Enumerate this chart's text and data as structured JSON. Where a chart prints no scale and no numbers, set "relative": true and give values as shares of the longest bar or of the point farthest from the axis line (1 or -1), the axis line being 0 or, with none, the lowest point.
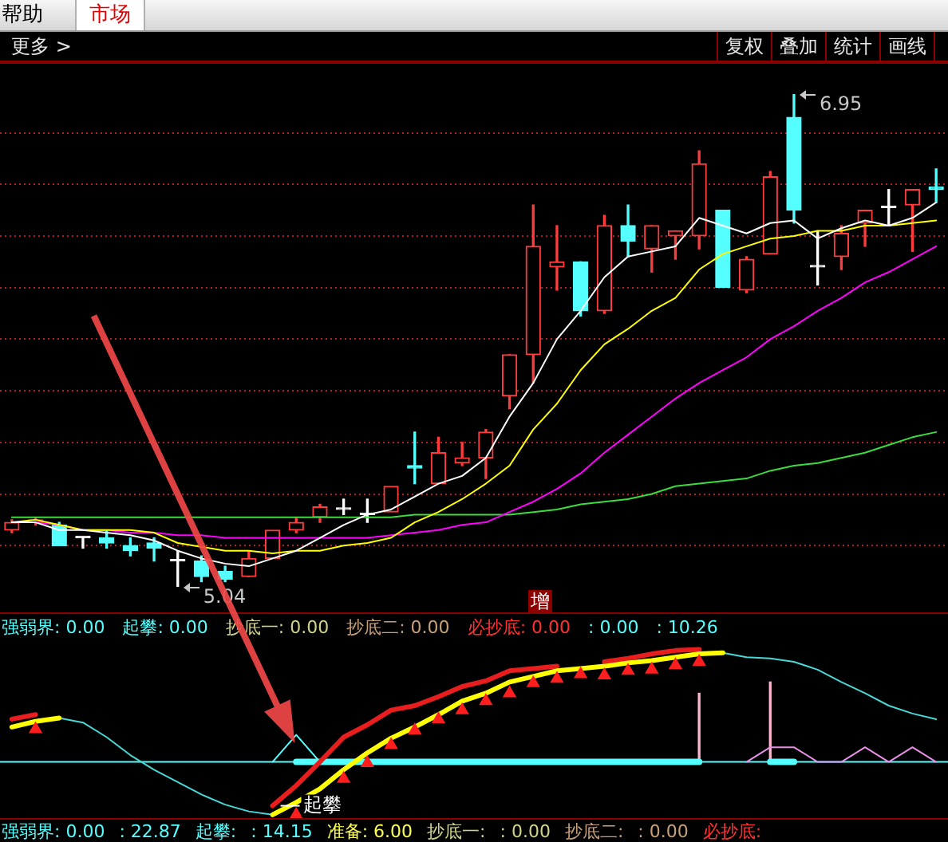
{
  "chart_data": [
    {
      "type": "other",
      "annotations": [
        "帮助",
        "市场",
        "更多 >",
        "复权",
        "叠加",
        "统计",
        "画线"
      ]
    },
    {
      "type": "candlestick",
      "categories": [
        null,
        null,
        null,
        null,
        null,
        null,
        null,
        null,
        null,
        null,
        null,
        null,
        null,
        null,
        null,
        null,
        null,
        null,
        null,
        null,
        null,
        null,
        null,
        null,
        null,
        null,
        null,
        null,
        null,
        null,
        null,
        null,
        null,
        null,
        null,
        null,
        null,
        null,
        null,
        null
      ],
      "ohlc": [
        [
          5.26,
          5.3,
          5.25,
          5.29
        ],
        [
          5.29,
          5.31,
          5.28,
          5.3
        ],
        [
          5.28,
          5.29,
          5.2,
          5.2
        ],
        [
          5.23,
          5.23,
          5.19,
          5.23
        ],
        [
          5.23,
          5.26,
          5.19,
          5.21
        ],
        [
          5.2,
          5.23,
          5.16,
          5.18
        ],
        [
          5.21,
          5.23,
          5.14,
          5.19
        ],
        [
          5.14,
          5.18,
          5.04,
          5.14
        ],
        [
          5.14,
          5.16,
          5.06,
          5.08
        ],
        [
          5.1,
          5.12,
          5.06,
          5.07
        ],
        [
          5.08,
          5.18,
          5.08,
          5.15
        ],
        [
          5.15,
          5.26,
          5.15,
          5.26
        ],
        [
          5.26,
          5.31,
          5.25,
          5.29
        ],
        [
          5.31,
          5.36,
          5.29,
          5.35
        ],
        [
          5.34,
          5.38,
          5.32,
          5.34
        ],
        [
          5.32,
          5.38,
          5.29,
          5.32
        ],
        [
          5.33,
          5.43,
          5.33,
          5.43
        ],
        [
          5.51,
          5.64,
          5.44,
          5.5
        ],
        [
          5.44,
          5.62,
          5.44,
          5.56
        ],
        [
          5.52,
          5.6,
          5.51,
          5.54
        ],
        [
          5.54,
          5.65,
          5.46,
          5.64
        ],
        [
          5.78,
          5.94,
          5.73,
          5.94
        ],
        [
          5.94,
          6.52,
          5.83,
          6.36
        ],
        [
          6.28,
          6.44,
          6.19,
          6.3
        ],
        [
          6.3,
          6.3,
          6.09,
          6.11
        ],
        [
          6.11,
          6.48,
          6.1,
          6.44
        ],
        [
          6.44,
          6.52,
          6.32,
          6.38
        ],
        [
          6.35,
          6.44,
          6.26,
          6.44
        ],
        [
          6.4,
          6.42,
          6.31,
          6.42
        ],
        [
          6.4,
          6.73,
          6.35,
          6.68
        ],
        [
          6.5,
          6.5,
          6.2,
          6.2
        ],
        [
          6.19,
          6.32,
          6.18,
          6.31
        ],
        [
          6.33,
          6.65,
          6.33,
          6.63
        ],
        [
          6.86,
          6.95,
          6.45,
          6.5
        ],
        [
          6.28,
          6.42,
          6.21,
          6.28
        ],
        [
          6.32,
          6.44,
          6.27,
          6.41
        ],
        [
          6.45,
          6.5,
          6.36,
          6.5
        ],
        [
          6.51,
          6.58,
          6.44,
          6.51
        ],
        [
          6.52,
          6.58,
          6.34,
          6.58
        ],
        [
          6.59,
          6.66,
          6.53,
          6.58
        ]
      ],
      "colors": [
        "#ff3c3c",
        "#ff3c3c",
        "#55ffff",
        "#ffffff",
        "#55ffff",
        "#55ffff",
        "#55ffff",
        "#ffffff",
        "#55ffff",
        "#55ffff",
        "#ff3c3c",
        "#ff3c3c",
        "#ff3c3c",
        "#ff3c3c",
        "#ffffff",
        "#ffffff",
        "#ff3c3c",
        "#55ffff",
        "#ff3c3c",
        "#ff3c3c",
        "#ff3c3c",
        "#ff3c3c",
        "#ff3c3c",
        "#ff3c3c",
        "#55ffff",
        "#ff3c3c",
        "#55ffff",
        "#ff3c3c",
        "#ff3c3c",
        "#ff3c3c",
        "#55ffff",
        "#ff3c3c",
        "#ff3c3c",
        "#55ffff",
        "#ffffff",
        "#ff3c3c",
        "#ff3c3c",
        "#ffffff",
        "#ff3c3c",
        "#55ffff"
      ],
      "series": [
        {
          "type": "line",
          "color": "#ffffff",
          "values": [
            5.29,
            5.29,
            5.26,
            5.26,
            5.25,
            5.24,
            5.22,
            5.18,
            5.15,
            5.13,
            5.12,
            5.15,
            5.18,
            5.23,
            5.28,
            5.32,
            5.34,
            5.39,
            5.44,
            5.47,
            5.54,
            5.7,
            5.83,
            6.0,
            6.11,
            6.24,
            6.32,
            6.34,
            6.36,
            6.47,
            6.44,
            6.41,
            6.45,
            6.46,
            6.39,
            6.43,
            6.46,
            6.44,
            6.47,
            6.53
          ]
        },
        {
          "type": "line",
          "color": "#ffff00",
          "values": [
            5.29,
            5.3,
            5.28,
            5.26,
            5.26,
            5.26,
            5.25,
            5.21,
            null,
            5.18,
            5.18,
            5.17,
            5.18,
            5.18,
            5.2,
            5.21,
            5.23,
            5.29,
            5.33,
            5.38,
            5.44,
            5.51,
            5.65,
            5.75,
            5.88,
            5.98,
            6.04,
            6.11,
            6.16,
            6.27,
            6.33,
            6.36,
            6.39,
            6.4,
            6.42,
            6.42,
            6.44,
            6.44,
            6.45,
            6.46
          ]
        },
        {
          "type": "line",
          "color": "#ff00ff",
          "values": [
            5.29,
            5.29,
            5.28,
            5.26,
            5.26,
            5.25,
            5.25,
            5.24,
            5.24,
            5.23,
            5.23,
            5.23,
            5.23,
            5.23,
            5.23,
            5.23,
            5.24,
            5.25,
            5.26,
            5.28,
            5.29,
            5.33,
            5.37,
            5.42,
            5.48,
            5.56,
            5.63,
            5.7,
            5.77,
            5.83,
            5.88,
            5.93,
            6.0,
            6.05,
            6.11,
            6.16,
            6.22,
            6.26,
            6.31,
            6.36
          ]
        },
        {
          "type": "line",
          "color": "#3cdc3c",
          "values": [
            5.31,
            5.31,
            5.31,
            5.31,
            5.31,
            5.31,
            5.31,
            5.31,
            5.31,
            5.31,
            5.31,
            5.31,
            5.31,
            5.31,
            5.31,
            5.31,
            5.31,
            5.32,
            5.32,
            5.32,
            5.32,
            5.32,
            5.33,
            5.34,
            5.36,
            5.37,
            5.38,
            5.4,
            5.43,
            5.44,
            5.45,
            5.46,
            5.49,
            5.51,
            5.52,
            5.54,
            5.56,
            5.59,
            5.62,
            5.64
          ]
        }
      ],
      "yticks": [
        {
          "value": 5.2,
          "label": null
        },
        {
          "value": 5.4,
          "label": null
        },
        {
          "value": 5.6,
          "label": null
        },
        {
          "value": 5.8,
          "label": null
        },
        {
          "value": 6.0,
          "label": null
        },
        {
          "value": 6.2,
          "label": null
        },
        {
          "value": 6.4,
          "label": null
        },
        {
          "value": 6.6,
          "label": null
        },
        {
          "value": 6.8,
          "label": null
        }
      ],
      "grid": "y",
      "tick_labels": false,
      "annotations": [
        "6.95",
        "5.04",
        "增"
      ]
    },
    {
      "type": "line",
      "relative": true,
      "tick_labels": false,
      "categories": [
        null,
        null,
        null,
        null,
        null,
        null,
        null,
        null,
        null,
        null,
        null,
        null,
        null,
        null,
        null,
        null,
        null,
        null,
        null,
        null,
        null,
        null,
        null,
        null,
        null,
        null,
        null,
        null,
        null,
        null,
        null,
        null,
        null,
        null,
        null,
        null,
        null,
        null,
        null,
        null
      ],
      "series": [
        {
          "type": "line",
          "color": "#ffff00",
          "values": [
            0.31,
            0.36,
            0.39,
            null,
            null,
            null,
            null,
            null,
            null,
            null,
            null,
            -0.47,
            -0.36,
            -0.24,
            -0.07,
            0.08,
            0.21,
            0.31,
            0.42,
            0.54,
            0.61,
            0.71,
            0.76,
            0.81,
            0.83,
            0.85,
            0.88,
            0.9,
            0.93,
            0.96,
            0.97,
            null,
            null,
            null,
            null,
            null,
            null,
            null,
            null,
            null
          ]
        },
        {
          "type": "line",
          "color": "#48d8d8",
          "values": [
            null,
            null,
            0.39,
            0.35,
            0.22,
            0.06,
            -0.07,
            -0.18,
            -0.29,
            -0.38,
            -0.44,
            -0.47,
            null,
            null,
            null,
            null,
            null,
            null,
            null,
            null,
            null,
            null,
            null,
            null,
            null,
            null,
            null,
            null,
            null,
            null,
            0.97,
            0.93,
            0.92,
            0.89,
            0.82,
            0.71,
            0.61,
            0.5,
            0.43,
            0.38
          ]
        },
        {
          "type": "line",
          "color": "#e81e1e",
          "values": [
            0.38,
            0.42,
            null,
            null,
            null,
            null,
            null,
            null,
            null,
            null,
            null,
            -0.39,
            -0.21,
            0.0,
            0.22,
            0.33,
            0.46,
            0.5,
            0.58,
            0.67,
            0.72,
            0.81,
            0.83,
            0.85,
            null,
            0.89,
            0.92,
            0.96,
            0.99,
            1.0,
            null,
            null,
            null,
            null,
            null,
            null,
            null,
            null,
            null,
            null
          ]
        },
        {
          "type": "line",
          "color": "#55ffff",
          "values": [
            null,
            null,
            null,
            null,
            null,
            null,
            null,
            null,
            null,
            null,
            null,
            null,
            0,
            0,
            0,
            0,
            0,
            0,
            0,
            0,
            0,
            0,
            0,
            0,
            0,
            0,
            0,
            0,
            0,
            0,
            null,
            null,
            0,
            0,
            null,
            null,
            null,
            null,
            null,
            null
          ]
        },
        {
          "type": "line",
          "color": "#55ffff",
          "values": [
            null,
            null,
            null,
            null,
            null,
            null,
            null,
            null,
            null,
            null,
            null,
            0,
            0.24,
            0,
            null,
            null,
            null,
            null,
            null,
            null,
            null,
            null,
            null,
            null,
            null,
            null,
            null,
            null,
            null,
            null,
            null,
            null,
            null,
            null,
            null,
            null,
            null,
            null,
            null,
            null
          ]
        },
        {
          "type": "line",
          "color": "#e890e8",
          "values": [
            null,
            null,
            null,
            null,
            null,
            null,
            null,
            null,
            null,
            null,
            null,
            null,
            null,
            null,
            null,
            null,
            null,
            null,
            null,
            null,
            null,
            null,
            null,
            null,
            null,
            null,
            null,
            null,
            null,
            null,
            null,
            0,
            0.13,
            0.13,
            0,
            0,
            0.13,
            0,
            0.13,
            0
          ]
        },
        {
          "type": "scatter",
          "marker": "triangle",
          "color": "#ff1e1e",
          "values": [
            null,
            0.29,
            null,
            null,
            null,
            null,
            null,
            null,
            null,
            null,
            null,
            null,
            -0.47,
            null,
            -0.15,
            -0.01,
            0.15,
            0.28,
            0.38,
            0.46,
            0.54,
            0.61,
            0.7,
            0.74,
            0.78,
            0.77,
            0.81,
            0.82,
            0.86,
            0.89,
            null,
            null,
            null,
            null,
            null,
            null,
            null,
            null,
            null,
            null
          ]
        },
        {
          "type": "bar",
          "color": "#ffb4d2",
          "values": [
            null,
            null,
            null,
            null,
            null,
            null,
            null,
            null,
            null,
            null,
            null,
            null,
            null,
            null,
            null,
            null,
            null,
            null,
            null,
            null,
            null,
            null,
            null,
            null,
            null,
            null,
            null,
            null,
            null,
            0.61,
            null,
            null,
            0.71,
            null,
            null,
            null,
            null,
            null,
            null,
            null
          ]
        }
      ],
      "ref_lines": [
        {
          "axis": "y",
          "value": 0,
          "color": "#55ffff"
        }
      ],
      "annotations": [
        "强弱界: 0.00",
        "起攀: 0.00",
        "抄底一: 0.00",
        "抄底二: 0.00",
        "必抄底: 0.00",
        ": 0.00",
        ": 10.26",
        {
          "text": "起攀",
          "y": -0.39
        }
      ]
    },
    {
      "type": "other",
      "annotations": [
        "强弱界: 0.00",
        ": 22.87",
        "起攀:",
        ": 14.15",
        "准备: 6.00",
        "抄底一:",
        ": 0.00",
        "抄底二:",
        ": 0.00",
        "必抄底:"
      ]
    }
  ]
}
